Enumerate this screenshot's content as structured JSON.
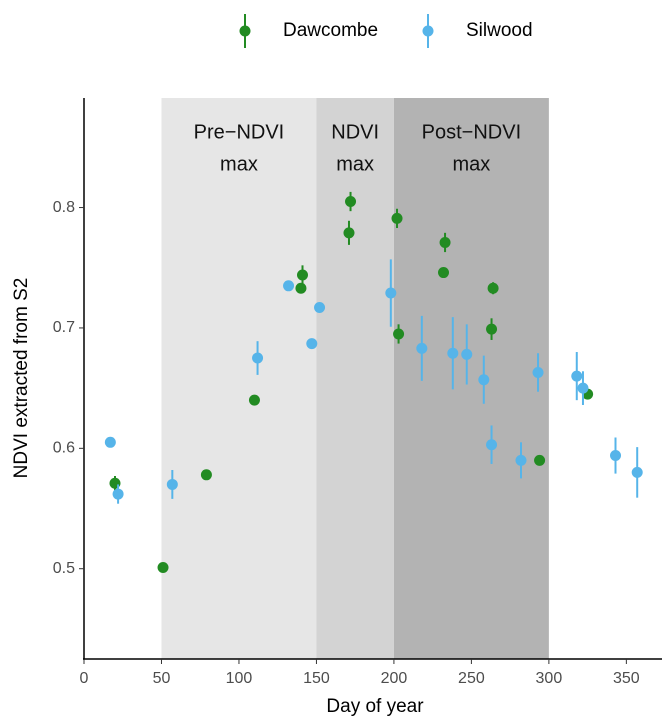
{
  "chart_data": {
    "type": "scatter",
    "x_label": "Day of year",
    "y_label": "NDVI extracted from S2",
    "xlim": [
      0,
      373
    ],
    "ylim": [
      0.425,
      0.891
    ],
    "xticks": [
      0,
      50,
      100,
      150,
      200,
      250,
      300,
      350
    ],
    "yticks": [
      0.5,
      0.6,
      0.7,
      0.8
    ],
    "legend": "top",
    "regions": [
      {
        "range": [
          50,
          150
        ],
        "color": "#e6e6e6",
        "label_lines": [
          "Pre−NDVI",
          "max"
        ]
      },
      {
        "range": [
          150,
          200
        ],
        "color": "#d3d3d3",
        "label_lines": [
          "NDVI",
          "max"
        ]
      },
      {
        "range": [
          200,
          300
        ],
        "color": "#b3b3b3",
        "label_lines": [
          "Post−NDVI",
          "max"
        ]
      }
    ],
    "series": [
      {
        "name": "Dawcombe",
        "color": "#228b22",
        "x": [
          20,
          51,
          79,
          110,
          140,
          141,
          171,
          172,
          202,
          203,
          233,
          232,
          264,
          263,
          294,
          325
        ],
        "values": [
          0.571,
          0.501,
          0.578,
          0.64,
          0.733,
          0.744,
          0.779,
          0.805,
          0.791,
          0.695,
          0.771,
          0.746,
          0.733,
          0.699,
          0.59,
          0.645
        ],
        "errors": [
          0.006,
          0.003,
          0.002,
          0.002,
          0.002,
          0.008,
          0.01,
          0.008,
          0.008,
          0.008,
          0.008,
          0.002,
          0.005,
          0.009,
          0.002,
          0.003
        ]
      },
      {
        "name": "Silwood",
        "color": "#56b4e9",
        "x": [
          17,
          22,
          57,
          112,
          132,
          147,
          152,
          198,
          218,
          238,
          247,
          258,
          263,
          282,
          293,
          318,
          322,
          343,
          357
        ],
        "values": [
          0.605,
          0.562,
          0.57,
          0.675,
          0.735,
          0.687,
          0.717,
          0.729,
          0.683,
          0.679,
          0.678,
          0.657,
          0.603,
          0.59,
          0.663,
          0.66,
          0.65,
          0.594,
          0.58
        ],
        "errors": [
          0.002,
          0.008,
          0.012,
          0.014,
          0.002,
          0.002,
          0.002,
          0.028,
          0.027,
          0.03,
          0.025,
          0.02,
          0.016,
          0.015,
          0.016,
          0.02,
          0.014,
          0.015,
          0.021
        ]
      }
    ]
  }
}
